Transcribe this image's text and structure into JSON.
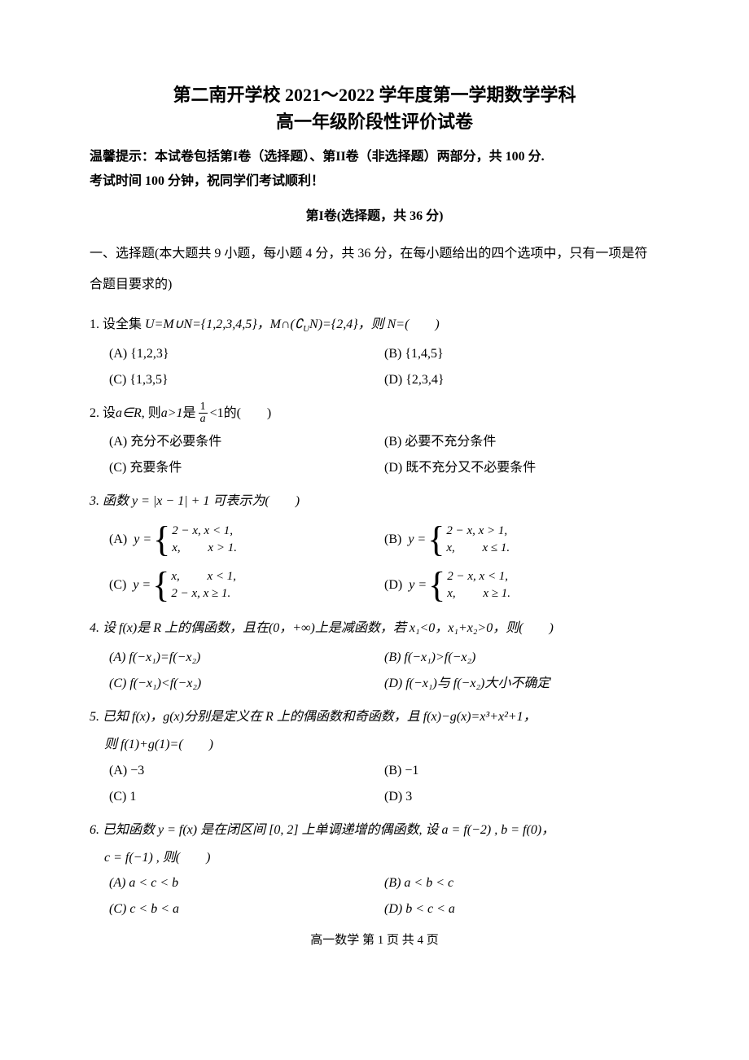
{
  "header": {
    "title_line1": "第二南开学校 2021～2022 学年度第一学期数学学科",
    "title_line2": "高一年级阶段性评价试卷",
    "tip_line1": "温馨提示：本试卷包括第I卷（选择题）、第II卷（非选择题）两部分，共 100 分.",
    "tip_line2": "考试时间 100 分钟，祝同学们考试顺利！",
    "section_title": "第I卷(选择题，共 36 分)",
    "section_desc": "一、选择题(本大题共 9 小题，每小题 4 分，共 36 分，在每小题给出的四个选项中，只有一项是符合题目要求的)"
  },
  "q1": {
    "stem_prefix": "1.  设全集 ",
    "stem_math": "U=M∪N={1,2,3,4,5}，M∩(∁",
    "stem_sub": "U",
    "stem_math2": "N)={2,4}，则 N=(  )",
    "optA": "(A) {1,2,3}",
    "optB": "(B) {1,4,5}",
    "optC": "(C) {1,3,5}",
    "optD": "(D) {2,3,4}"
  },
  "q2": {
    "stem_prefix": "2.  设",
    "stem_mid1": "a∈R",
    "stem_mid2": ", 则",
    "stem_mid3": "a>1",
    "stem_mid4": "是",
    "frac_num": "1",
    "frac_den": "a",
    "stem_end": "<1的(  )",
    "optA": "(A) 充分不必要条件",
    "optB": "(B) 必要不充分条件",
    "optC": "(C) 充要条件",
    "optD": "(D) 既不充分又不必要条件"
  },
  "q3": {
    "stem": "3.  函数 y = |x − 1| + 1 可表示为(  )",
    "labA": "(A)",
    "prefixA": "y =",
    "A_case1": "2 − x,  x < 1,",
    "A_case2": "x,   x > 1.",
    "labB": "(B)",
    "prefixB": "y =",
    "B_case1": "2 − x,  x > 1,",
    "B_case2": "x,   x ≤ 1.",
    "labC": "(C)",
    "prefixC": "y =",
    "C_case1": "x,   x < 1,",
    "C_case2": "2 − x,  x ≥ 1.",
    "labD": "(D)",
    "prefixD": "y =",
    "D_case1": "2 − x,  x < 1,",
    "D_case2": "x,   x ≥ 1.",
    "brace": "{"
  },
  "q4": {
    "stem": "4.  设 f(x)是 R 上的偶函数，且在(0，+∞)上是减函数，若 x₁<0，x₁+x₂>0，则(  )",
    "optA": "(A) f(−x₁)=f(−x₂)",
    "optB": "(B) f(−x₁)>f(−x₂)",
    "optC": "(C) f(−x₁)<f(−x₂)",
    "optD": "(D) f(−x₁)与 f(−x₂)大小不确定"
  },
  "q5": {
    "stem1": "5.  已知 f(x)，g(x)分别是定义在 R 上的偶函数和奇函数，且 f(x)−g(x)=x³+x²+1，",
    "stem2": "则 f(1)+g(1)=(  )",
    "optA": "(A) −3",
    "optB": "(B) −1",
    "optC": "(C) 1",
    "optD": "(D) 3"
  },
  "q6": {
    "stem1": "6.  已知函数 y = f(x) 是在闭区间 [0, 2] 上单调递增的偶函数, 设 a = f(−2) ,  b = f(0)，",
    "stem2": "c = f(−1) , 则(  )",
    "optA": "(A)  a < c < b",
    "optB": "(B)  a < b < c",
    "optC": "(C)  c < b < a",
    "optD": "(D)  b < c < a"
  },
  "footer": {
    "text": "高一数学 第 1 页 共 4 页"
  }
}
